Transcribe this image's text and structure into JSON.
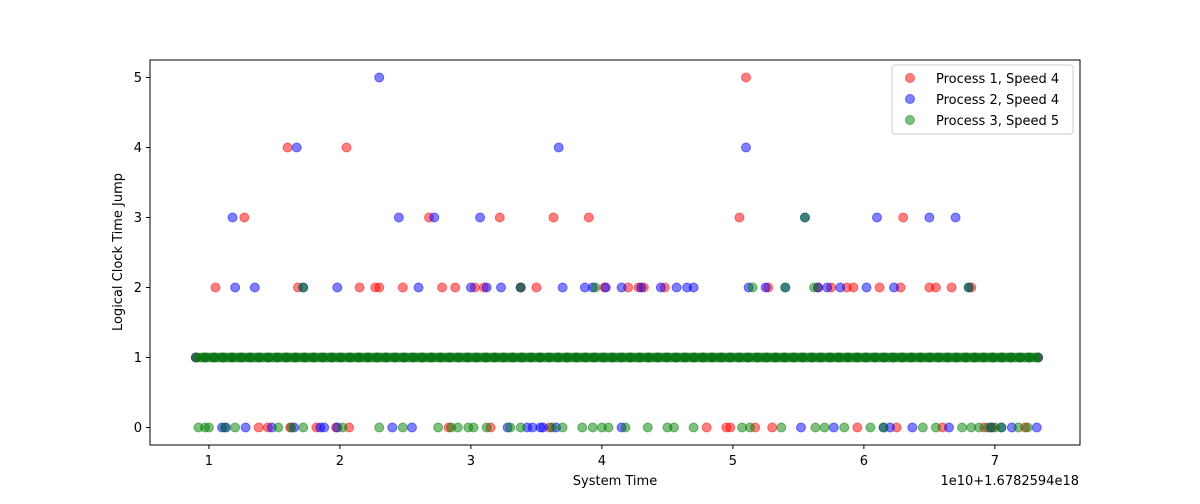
{
  "chart_data": {
    "type": "scatter",
    "title": "",
    "xlabel": "System Time",
    "ylabel": "Logical Clock Time Jump",
    "offset_label": "1e10+1.6782594e18",
    "xlim": [
      0.55,
      7.65
    ],
    "ylim": [
      -0.25,
      5.25
    ],
    "x_ticks": [
      1,
      2,
      3,
      4,
      5,
      6,
      7
    ],
    "y_ticks": [
      0,
      1,
      2,
      3,
      4,
      5
    ],
    "grid": false,
    "legend_position": "top-right",
    "series": [
      {
        "name": "Process 1, Speed 4",
        "color": "#ff0000",
        "points": [
          [
            1.05,
            2
          ],
          [
            1.27,
            3
          ],
          [
            1.6,
            4
          ],
          [
            1.68,
            2
          ],
          [
            2.05,
            4
          ],
          [
            2.15,
            2
          ],
          [
            2.27,
            2
          ],
          [
            2.3,
            2
          ],
          [
            2.48,
            2
          ],
          [
            2.68,
            3
          ],
          [
            2.78,
            2
          ],
          [
            2.88,
            2
          ],
          [
            3.03,
            2
          ],
          [
            3.1,
            2
          ],
          [
            3.22,
            3
          ],
          [
            3.38,
            2
          ],
          [
            3.5,
            2
          ],
          [
            3.63,
            3
          ],
          [
            3.9,
            3
          ],
          [
            4.02,
            2
          ],
          [
            4.2,
            2
          ],
          [
            4.28,
            2
          ],
          [
            4.32,
            2
          ],
          [
            4.48,
            2
          ],
          [
            5.05,
            3
          ],
          [
            5.1,
            5
          ],
          [
            5.27,
            2
          ],
          [
            5.65,
            2
          ],
          [
            5.75,
            2
          ],
          [
            5.87,
            2
          ],
          [
            5.92,
            2
          ],
          [
            6.12,
            2
          ],
          [
            6.3,
            3
          ],
          [
            6.28,
            2
          ],
          [
            6.5,
            2
          ],
          [
            6.55,
            2
          ],
          [
            6.67,
            2
          ],
          [
            6.82,
            2
          ],
          [
            1.38,
            0
          ],
          [
            1.45,
            0
          ],
          [
            1.62,
            0
          ],
          [
            1.82,
            0
          ],
          [
            1.97,
            0
          ],
          [
            2.07,
            0
          ],
          [
            2.83,
            0
          ],
          [
            3.15,
            0
          ],
          [
            3.6,
            0
          ],
          [
            4.8,
            0
          ],
          [
            4.95,
            0
          ],
          [
            4.98,
            0
          ],
          [
            5.17,
            0
          ],
          [
            5.3,
            0
          ],
          [
            5.95,
            0
          ],
          [
            6.25,
            0
          ],
          [
            6.6,
            0
          ],
          [
            6.92,
            0
          ],
          [
            6.98,
            0
          ],
          [
            7.23,
            0
          ]
        ]
      },
      {
        "name": "Process 2, Speed 4",
        "color": "#0000ff",
        "points": [
          [
            1.18,
            3
          ],
          [
            1.2,
            2
          ],
          [
            1.35,
            2
          ],
          [
            1.67,
            4
          ],
          [
            1.72,
            2
          ],
          [
            1.98,
            2
          ],
          [
            2.3,
            5
          ],
          [
            2.45,
            3
          ],
          [
            2.6,
            2
          ],
          [
            2.72,
            3
          ],
          [
            3.0,
            2
          ],
          [
            3.07,
            3
          ],
          [
            3.12,
            2
          ],
          [
            3.23,
            2
          ],
          [
            3.38,
            2
          ],
          [
            3.67,
            4
          ],
          [
            3.7,
            2
          ],
          [
            3.87,
            2
          ],
          [
            3.93,
            2
          ],
          [
            4.03,
            2
          ],
          [
            4.15,
            2
          ],
          [
            4.3,
            2
          ],
          [
            4.45,
            2
          ],
          [
            4.57,
            2
          ],
          [
            4.65,
            2
          ],
          [
            4.7,
            2
          ],
          [
            5.1,
            4
          ],
          [
            5.12,
            2
          ],
          [
            5.25,
            2
          ],
          [
            5.4,
            2
          ],
          [
            5.55,
            3
          ],
          [
            5.65,
            2
          ],
          [
            5.72,
            2
          ],
          [
            5.82,
            2
          ],
          [
            6.02,
            2
          ],
          [
            6.1,
            3
          ],
          [
            6.23,
            2
          ],
          [
            6.5,
            3
          ],
          [
            6.7,
            3
          ],
          [
            6.8,
            2
          ],
          [
            1.1,
            0
          ],
          [
            1.13,
            0
          ],
          [
            1.28,
            0
          ],
          [
            1.48,
            0
          ],
          [
            1.65,
            0
          ],
          [
            1.85,
            0
          ],
          [
            1.88,
            0
          ],
          [
            1.98,
            0
          ],
          [
            2.4,
            0
          ],
          [
            2.55,
            0
          ],
          [
            3.28,
            0
          ],
          [
            3.43,
            0
          ],
          [
            3.47,
            0
          ],
          [
            3.53,
            0
          ],
          [
            3.55,
            0
          ],
          [
            3.65,
            0
          ],
          [
            4.15,
            0
          ],
          [
            5.52,
            0
          ],
          [
            5.77,
            0
          ],
          [
            6.15,
            0
          ],
          [
            6.2,
            0
          ],
          [
            6.37,
            0
          ],
          [
            6.65,
            0
          ],
          [
            6.97,
            0
          ],
          [
            7.05,
            0
          ],
          [
            7.13,
            0
          ],
          [
            7.32,
            0
          ]
        ]
      },
      {
        "name": "Process 3, Speed 5",
        "color": "#008000",
        "points": [
          [
            1.72,
            2
          ],
          [
            3.38,
            2
          ],
          [
            3.95,
            2
          ],
          [
            5.15,
            2
          ],
          [
            5.4,
            2
          ],
          [
            5.55,
            3
          ],
          [
            5.62,
            2
          ],
          [
            6.8,
            2
          ],
          [
            0.92,
            0
          ],
          [
            0.97,
            0
          ],
          [
            1.0,
            0
          ],
          [
            1.12,
            0
          ],
          [
            1.2,
            0
          ],
          [
            1.53,
            0
          ],
          [
            1.63,
            0
          ],
          [
            1.72,
            0
          ],
          [
            2.02,
            0
          ],
          [
            2.3,
            0
          ],
          [
            2.48,
            0
          ],
          [
            2.75,
            0
          ],
          [
            2.85,
            0
          ],
          [
            2.9,
            0
          ],
          [
            2.98,
            0
          ],
          [
            3.02,
            0
          ],
          [
            3.12,
            0
          ],
          [
            3.3,
            0
          ],
          [
            3.38,
            0
          ],
          [
            3.62,
            0
          ],
          [
            3.7,
            0
          ],
          [
            3.85,
            0
          ],
          [
            3.93,
            0
          ],
          [
            4.0,
            0
          ],
          [
            4.05,
            0
          ],
          [
            4.18,
            0
          ],
          [
            4.35,
            0
          ],
          [
            4.5,
            0
          ],
          [
            4.55,
            0
          ],
          [
            4.7,
            0
          ],
          [
            5.07,
            0
          ],
          [
            5.13,
            0
          ],
          [
            5.37,
            0
          ],
          [
            5.63,
            0
          ],
          [
            5.7,
            0
          ],
          [
            5.85,
            0
          ],
          [
            6.05,
            0
          ],
          [
            6.15,
            0
          ],
          [
            6.45,
            0
          ],
          [
            6.55,
            0
          ],
          [
            6.75,
            0
          ],
          [
            6.82,
            0
          ],
          [
            6.88,
            0
          ],
          [
            6.95,
            0
          ],
          [
            7.0,
            0
          ],
          [
            7.05,
            0
          ],
          [
            7.18,
            0
          ],
          [
            7.25,
            0
          ]
        ]
      }
    ],
    "dense_band": {
      "series": "Process 3, Speed 5",
      "y": 1,
      "x_start": 0.9,
      "x_end": 7.33,
      "count": 280,
      "overlay_series": [
        "Process 1, Speed 4",
        "Process 2, Speed 4"
      ]
    }
  }
}
